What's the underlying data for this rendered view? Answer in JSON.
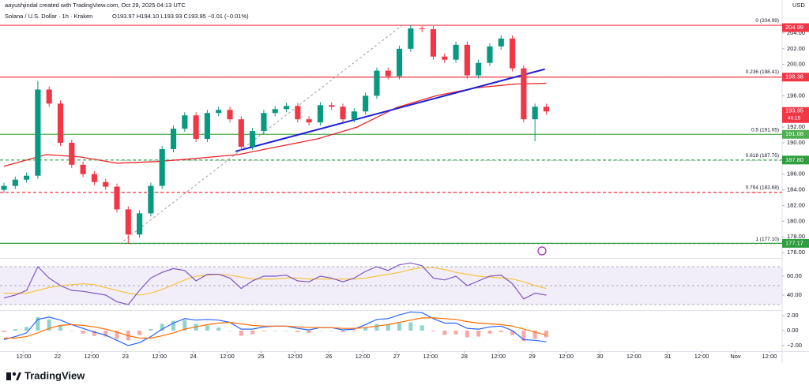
{
  "chart_data": [
    {
      "type": "candlestick",
      "credit": "aayushjindal created with TradingView.com, Oct 29, 2025 04:13 UTC",
      "title": "Solana / U.S. Dollar · 1h · Kraken",
      "ohlc": "O193.97 H194.10 L193.93 C193.95 −0.01 (−0.01%)",
      "currency": "USD",
      "up_color": "#089981",
      "down_color": "#f23645",
      "x": [
        5,
        9,
        13,
        17,
        21,
        25,
        29,
        33,
        37,
        41,
        45,
        49,
        53,
        57,
        61,
        65,
        69,
        73,
        77,
        81,
        85,
        89,
        93,
        97,
        101,
        105,
        109,
        113,
        117,
        121,
        125,
        129,
        133,
        137,
        141,
        145,
        149,
        153,
        157,
        161,
        165,
        169,
        173,
        177,
        181,
        185,
        189,
        193,
        197
      ],
      "open": [
        184.0,
        184.5,
        185.3,
        185.8,
        196.8,
        195.0,
        190.0,
        187.2,
        186.0,
        185.0,
        184.4,
        181.5,
        178.3,
        181.0,
        184.5,
        189.2,
        191.8,
        193.5,
        190.5,
        193.8,
        194.2,
        193.0,
        189.5,
        191.5,
        193.8,
        194.3,
        194.7,
        193.0,
        192.6,
        194.8,
        194.6,
        193.0,
        194.0,
        196.0,
        199.2,
        198.5,
        202.0,
        204.6,
        204.5,
        201.0,
        200.6,
        202.5,
        198.6,
        200.2,
        202.3,
        203.3,
        199.5,
        193.0,
        194.6
      ],
      "high": [
        184.9,
        185.7,
        186.2,
        197.9,
        197.2,
        195.4,
        190.4,
        187.6,
        186.4,
        185.4,
        184.8,
        181.9,
        181.4,
        184.9,
        189.6,
        192.2,
        193.9,
        193.9,
        194.2,
        194.6,
        194.6,
        193.4,
        191.9,
        194.2,
        194.7,
        195.1,
        195.1,
        193.4,
        195.2,
        195.2,
        195.0,
        194.4,
        196.4,
        199.6,
        199.6,
        202.4,
        204.99,
        204.9,
        204.9,
        201.4,
        202.9,
        202.9,
        200.6,
        202.7,
        203.7,
        203.7,
        199.9,
        195.0,
        195.0
      ],
      "low": [
        183.6,
        184.1,
        184.9,
        185.4,
        194.6,
        189.6,
        186.8,
        185.6,
        184.6,
        184.0,
        181.1,
        177.1,
        177.9,
        180.6,
        184.1,
        188.8,
        191.4,
        190.1,
        190.1,
        193.4,
        192.6,
        189.1,
        189.1,
        191.1,
        193.4,
        193.9,
        192.6,
        192.2,
        192.2,
        194.2,
        192.6,
        192.6,
        193.6,
        195.6,
        198.1,
        198.1,
        201.6,
        204.1,
        200.6,
        200.2,
        200.2,
        198.2,
        198.2,
        199.8,
        201.9,
        199.1,
        192.6,
        190.2,
        193.6
      ],
      "close": [
        184.5,
        185.3,
        185.8,
        196.8,
        195.0,
        190.0,
        187.2,
        186.0,
        185.0,
        184.4,
        181.5,
        178.3,
        181.0,
        184.5,
        189.2,
        191.8,
        193.5,
        190.5,
        193.8,
        194.2,
        193.0,
        189.5,
        191.5,
        193.8,
        194.3,
        194.7,
        193.0,
        192.6,
        194.8,
        194.6,
        193.0,
        194.0,
        196.0,
        199.2,
        198.5,
        202.0,
        204.6,
        204.5,
        201.0,
        200.6,
        202.5,
        198.6,
        200.2,
        202.3,
        203.3,
        199.5,
        193.0,
        194.6,
        194.0
      ],
      "xlim": [
        3.6,
        280.5
      ],
      "xticks": [
        {
          "value": 12,
          "label": "12:00"
        },
        {
          "value": 24,
          "label": "22"
        },
        {
          "value": 36,
          "label": "12:00"
        },
        {
          "value": 48,
          "label": "23"
        },
        {
          "value": 60,
          "label": "12:00"
        },
        {
          "value": 72,
          "label": "24"
        },
        {
          "value": 84,
          "label": "12:00"
        },
        {
          "value": 96,
          "label": "25"
        },
        {
          "value": 108,
          "label": "12:00"
        },
        {
          "value": 120,
          "label": "26"
        },
        {
          "value": 132,
          "label": "12:00"
        },
        {
          "value": 144,
          "label": "27"
        },
        {
          "value": 156,
          "label": "12:00"
        },
        {
          "value": 168,
          "label": "28"
        },
        {
          "value": 180,
          "label": "12:00"
        },
        {
          "value": 192,
          "label": "29"
        },
        {
          "value": 204,
          "label": "12:00"
        },
        {
          "value": 216,
          "label": "30"
        },
        {
          "value": 228,
          "label": "12:00"
        },
        {
          "value": 240,
          "label": "31"
        },
        {
          "value": 252,
          "label": "12:00"
        },
        {
          "value": 264,
          "label": "Nov"
        },
        {
          "value": 276,
          "label": "12:00"
        }
      ],
      "ylim": [
        175.5,
        205.2
      ],
      "yticks": [
        {
          "value": 204,
          "label": "204.00"
        },
        {
          "value": 202,
          "label": "202.00"
        },
        {
          "value": 200,
          "label": "200.00"
        },
        {
          "value": 196,
          "label": "196.00"
        },
        {
          "value": 192,
          "label": "192.00"
        },
        {
          "value": 190,
          "label": "190.00"
        },
        {
          "value": 186,
          "label": "186.00"
        },
        {
          "value": 184,
          "label": "184.00"
        },
        {
          "value": 182,
          "label": "182.00"
        },
        {
          "value": 180,
          "label": "180.00"
        },
        {
          "value": 178,
          "label": "178.00"
        },
        {
          "value": 176,
          "label": "176.00"
        }
      ],
      "grid": false,
      "overlays": [
        {
          "color": "#e8262b",
          "width": 1.3,
          "dash": false,
          "x": [
            5,
            20,
            32,
            45,
            59,
            73,
            88,
            102,
            116,
            130,
            144,
            158,
            172,
            186,
            197
          ],
          "values": [
            187.0,
            188.5,
            188.2,
            187.4,
            187.6,
            188.0,
            188.5,
            189.5,
            190.5,
            192.0,
            194.5,
            196.0,
            197.0,
            197.5,
            197.6
          ]
        },
        {
          "color": "#1e22d8",
          "width": 2,
          "dash": false,
          "x": [
            87,
            196.5
          ],
          "values": [
            188.9,
            199.4
          ]
        },
        {
          "color": "#9e9e9e",
          "width": 1,
          "dash": true,
          "x": [
            46,
            146
          ],
          "values": [
            177.1,
            204.99
          ]
        }
      ],
      "lines": [
        {
          "value": 204.99,
          "color": "#f23645",
          "dash": false,
          "label": "204.99"
        },
        {
          "value": 198.38,
          "color": "#f23645",
          "dash": false,
          "label": "198.38"
        },
        {
          "value": 191.08,
          "color": "#4caf50",
          "dash": false,
          "label": "191.08"
        },
        {
          "value": 187.8,
          "color": "#2e9e3e",
          "dash": true,
          "label": "187.80"
        },
        {
          "value": 183.68,
          "color": "#f23645",
          "dash": true
        },
        {
          "value": 177.17,
          "color": "#2e9e3e",
          "dash": false,
          "label": "177.17"
        }
      ],
      "fib_levels": [
        {
          "value": 204.99,
          "label": "0 (204.99)",
          "color": "#787b86"
        },
        {
          "value": 198.41,
          "label": "0.236 (198.41)",
          "color": "#c62828"
        },
        {
          "value": 191.05,
          "label": "0.5 (191.05)",
          "color": "#9c2a2a"
        },
        {
          "value": 187.75,
          "label": "0.618 (187.75)",
          "color": "#2e9e3e"
        },
        {
          "value": 183.68,
          "label": "0.764 (183.68)",
          "color": "#c62828"
        },
        {
          "value": 177.1,
          "label": "1 (177.10)",
          "color": "#5a7fa8"
        }
      ],
      "last": {
        "value": 193.95,
        "countdown": "46:15",
        "color": "#f23645"
      }
    },
    {
      "type": "line",
      "x": [
        5,
        9,
        13,
        17,
        21,
        25,
        29,
        33,
        37,
        41,
        45,
        49,
        53,
        57,
        61,
        65,
        69,
        73,
        77,
        81,
        85,
        89,
        93,
        97,
        101,
        105,
        109,
        113,
        117,
        121,
        125,
        129,
        133,
        137,
        141,
        145,
        149,
        153,
        157,
        161,
        165,
        169,
        173,
        177,
        181,
        185,
        189,
        193,
        197
      ],
      "series": [
        {
          "color": "#7e57c2",
          "values": [
            37,
            40,
            45,
            70,
            58,
            50,
            45,
            44,
            42,
            40,
            33,
            30,
            45,
            58,
            64,
            68,
            66,
            55,
            62,
            62,
            58,
            47,
            55,
            60,
            60,
            61,
            55,
            54,
            60,
            58,
            54,
            58,
            65,
            70,
            66,
            72,
            74,
            71,
            58,
            56,
            60,
            50,
            55,
            60,
            61,
            52,
            36,
            42,
            40
          ]
        },
        {
          "color": "#f5c542",
          "values": [
            42,
            42,
            42,
            45,
            48,
            50,
            51,
            52,
            51,
            48,
            45,
            42,
            40,
            42,
            46,
            51,
            56,
            60,
            61,
            62,
            61,
            59,
            57,
            57,
            57,
            58,
            58,
            57,
            57,
            57,
            57,
            57,
            58,
            60,
            62,
            64,
            67,
            69,
            69,
            67,
            64,
            62,
            60,
            59,
            58,
            57,
            54,
            50,
            47
          ]
        }
      ],
      "ylim": [
        25,
        76.7
      ],
      "yticks": [
        {
          "value": 60,
          "label": "60.00"
        },
        {
          "value": 40,
          "label": "40.00"
        }
      ],
      "levels": [
        70,
        50,
        30
      ],
      "band_color": "#7e57c2"
    },
    {
      "type": "macd",
      "x": [
        5,
        9,
        13,
        17,
        21,
        25,
        29,
        33,
        37,
        41,
        45,
        49,
        53,
        57,
        61,
        65,
        69,
        73,
        77,
        81,
        85,
        89,
        93,
        97,
        101,
        105,
        109,
        113,
        117,
        121,
        125,
        129,
        133,
        137,
        141,
        145,
        149,
        153,
        157,
        161,
        165,
        169,
        173,
        177,
        181,
        185,
        189,
        193,
        197
      ],
      "histogram": [
        -0.2,
        0.2,
        0.5,
        1.8,
        1.5,
        0.7,
        0.0,
        -0.4,
        -0.7,
        -0.8,
        -1.1,
        -1.3,
        -0.6,
        0.2,
        0.9,
        1.3,
        1.4,
        0.9,
        0.7,
        0.4,
        0.0,
        -0.7,
        -0.5,
        -0.1,
        0.0,
        0.0,
        -0.2,
        -0.3,
        0.0,
        0.0,
        -0.2,
        -0.1,
        0.4,
        0.9,
        0.8,
        1.0,
        1.1,
        0.7,
        -0.1,
        -0.6,
        -0.5,
        -0.9,
        -0.8,
        -0.4,
        -0.2,
        -0.6,
        -1.4,
        -1.1,
        -0.9
      ],
      "hist_up": "#8fd4cd",
      "hist_down": "#f7a9a7",
      "series": [
        {
          "color": "#2962ff",
          "values": [
            -1.2,
            -0.8,
            -0.3,
            1.5,
            1.8,
            1.4,
            0.8,
            0.3,
            -0.2,
            -0.6,
            -1.3,
            -2.0,
            -1.6,
            -0.8,
            0.2,
            1.0,
            1.6,
            1.4,
            1.5,
            1.4,
            1.1,
            0.2,
            0.2,
            0.5,
            0.6,
            0.6,
            0.3,
            0.1,
            0.4,
            0.4,
            0.1,
            0.2,
            0.8,
            1.5,
            1.6,
            2.1,
            2.5,
            2.4,
            1.6,
            1.0,
            1.0,
            0.3,
            0.2,
            0.5,
            0.6,
            0.0,
            -1.2,
            -1.3,
            -1.5
          ]
        },
        {
          "color": "#ff6d00",
          "values": [
            -1.0,
            -1.0,
            -0.8,
            -0.3,
            0.3,
            0.7,
            0.8,
            0.7,
            0.5,
            0.2,
            -0.2,
            -0.7,
            -1.0,
            -1.0,
            -0.7,
            -0.3,
            0.2,
            0.5,
            0.8,
            1.0,
            1.1,
            0.9,
            0.7,
            0.6,
            0.6,
            0.6,
            0.5,
            0.4,
            0.4,
            0.4,
            0.3,
            0.3,
            0.4,
            0.6,
            0.8,
            1.1,
            1.4,
            1.7,
            1.7,
            1.6,
            1.5,
            1.2,
            1.0,
            0.9,
            0.8,
            0.6,
            0.2,
            -0.2,
            -0.6
          ]
        }
      ],
      "ylim": [
        -2.74,
        2.53
      ],
      "yticks": [
        {
          "value": 2,
          "label": "2.00"
        },
        {
          "value": 0,
          "label": "0.00"
        },
        {
          "value": -2,
          "label": "−2.00"
        }
      ]
    }
  ],
  "footer": {
    "brand": "TradingView"
  }
}
